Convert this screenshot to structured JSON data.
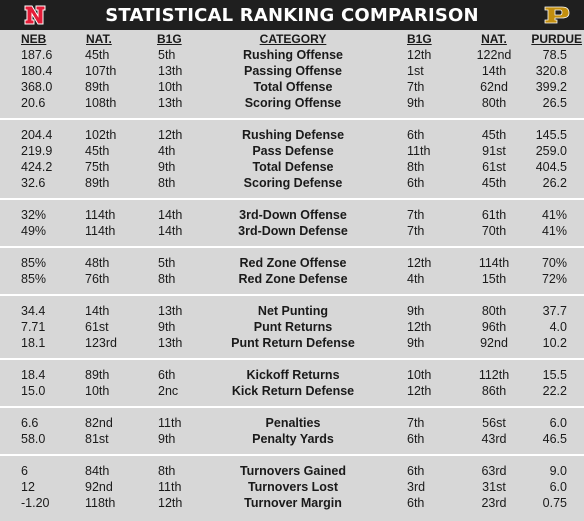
{
  "header": {
    "title": "STATISTICAL RANKING COMPARISON",
    "left_logo": "nebraska-n-logo",
    "right_logo": "purdue-p-logo",
    "colors": {
      "bar": "#1f1f1f",
      "neb_red": "#e41c38",
      "pur_gold": "#c28e0e",
      "background": "#d7d7d7"
    }
  },
  "columns": [
    "NEB",
    "NAT.",
    "B1G",
    "CATEGORY",
    "B1G",
    "NAT.",
    "PURDUE"
  ],
  "groups": [
    [
      [
        "187.6",
        "45th",
        "5th",
        "Rushing Offense",
        "12th",
        "122nd",
        "78.5"
      ],
      [
        "180.4",
        "107th",
        "13th",
        "Passing Offense",
        "1st",
        "14th",
        "320.8"
      ],
      [
        "368.0",
        "89th",
        "10th",
        "Total Offense",
        "7th",
        "62nd",
        "399.2"
      ],
      [
        "20.6",
        "108th",
        "13th",
        "Scoring Offense",
        "9th",
        "80th",
        "26.5"
      ]
    ],
    [
      [
        "204.4",
        "102th",
        "12th",
        "Rushing Defense",
        "6th",
        "45th",
        "145.5"
      ],
      [
        "219.9",
        "45th",
        "4th",
        "Pass Defense",
        "11th",
        "91st",
        "259.0"
      ],
      [
        "424.2",
        "75th",
        "9th",
        "Total Defense",
        "8th",
        "61st",
        "404.5"
      ],
      [
        "32.6",
        "89th",
        "8th",
        "Scoring Defense",
        "6th",
        "45th",
        "26.2"
      ]
    ],
    [
      [
        "32%",
        "114th",
        "14th",
        "3rd-Down Offense",
        "7th",
        "61th",
        "41%"
      ],
      [
        "49%",
        "114th",
        "14th",
        "3rd-Down Defense",
        "7th",
        "70th",
        "41%"
      ]
    ],
    [
      [
        "85%",
        "48th",
        "5th",
        "Red Zone Offense",
        "12th",
        "114th",
        "70%"
      ],
      [
        "85%",
        "76th",
        "8th",
        "Red Zone Defense",
        "4th",
        "15th",
        "72%"
      ]
    ],
    [
      [
        "34.4",
        "14th",
        "13th",
        "Net Punting",
        "9th",
        "80th",
        "37.7"
      ],
      [
        "7.71",
        "61st",
        "9th",
        "Punt Returns",
        "12th",
        "96th",
        "4.0"
      ],
      [
        "18.1",
        "123rd",
        "13th",
        "Punt Return Defense",
        "9th",
        "92nd",
        "10.2"
      ]
    ],
    [
      [
        "18.4",
        "89th",
        "6th",
        "Kickoff Returns",
        "10th",
        "112th",
        "15.5"
      ],
      [
        "15.0",
        "10th",
        "2nc",
        "Kick Return Defense",
        "12th",
        "86th",
        "22.2"
      ]
    ],
    [
      [
        "6.6",
        "82nd",
        "11th",
        "Penalties",
        "7th",
        "56st",
        "6.0"
      ],
      [
        "58.0",
        "81st",
        "9th",
        "Penalty Yards",
        "6th",
        "43rd",
        "46.5"
      ]
    ],
    [
      [
        "6",
        "84th",
        "8th",
        "Turnovers Gained",
        "6th",
        "63rd",
        "9.0"
      ],
      [
        "12",
        "92nd",
        "11th",
        "Turnovers Lost",
        "3rd",
        "31st",
        "6.0"
      ],
      [
        "-1.20",
        "118th",
        "12th",
        "Turnover Margin",
        "6th",
        "23rd",
        "0.75"
      ]
    ]
  ]
}
